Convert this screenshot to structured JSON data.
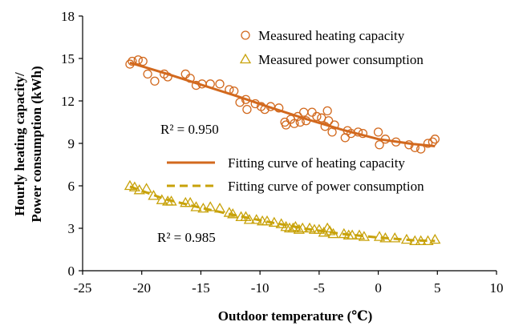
{
  "chart_data": {
    "type": "scatter",
    "xlabel": "Outdoor temperature (℃)",
    "ylabel_lines": [
      "Hourly heating capacity/",
      "Power consumption (kWh)"
    ],
    "xlim": [
      -25,
      10
    ],
    "ylim": [
      0,
      18
    ],
    "xticks": [
      "-25",
      "-20",
      "-15",
      "-10",
      "-5",
      "0",
      "5",
      "10"
    ],
    "yticks": [
      "0",
      "3",
      "6",
      "9",
      "12",
      "15",
      "18"
    ],
    "legend": {
      "heating_points": "Measured heating capacity",
      "power_points": "Measured power consumption",
      "heating_fit": "Fitting curve of heating capacity",
      "power_fit": "Fitting curve of power consumption"
    },
    "annotations": {
      "r2_heating": "R² = 0.950",
      "r2_power": "R² = 0.985"
    },
    "colors": {
      "heating": "#d2691e",
      "power": "#c8a20a"
    },
    "series": [
      {
        "name": "Measured heating capacity",
        "marker": "circle",
        "points": [
          [
            -21,
            14.6
          ],
          [
            -20.8,
            14.8
          ],
          [
            -20.3,
            14.9
          ],
          [
            -19.9,
            14.8
          ],
          [
            -19.5,
            13.9
          ],
          [
            -18.9,
            13.4
          ],
          [
            -18.1,
            13.9
          ],
          [
            -17.8,
            13.7
          ],
          [
            -16.3,
            13.9
          ],
          [
            -15.9,
            13.6
          ],
          [
            -15.4,
            13.1
          ],
          [
            -14.9,
            13.2
          ],
          [
            -14.2,
            13.2
          ],
          [
            -13.4,
            13.2
          ],
          [
            -12.6,
            12.8
          ],
          [
            -12.2,
            12.7
          ],
          [
            -11.7,
            11.9
          ],
          [
            -11.2,
            12.1
          ],
          [
            -11.1,
            11.4
          ],
          [
            -10.4,
            11.8
          ],
          [
            -9.9,
            11.6
          ],
          [
            -9.6,
            11.4
          ],
          [
            -9.1,
            11.6
          ],
          [
            -8.4,
            11.5
          ],
          [
            -7.9,
            10.5
          ],
          [
            -7.8,
            10.3
          ],
          [
            -7.4,
            10.7
          ],
          [
            -7.1,
            10.4
          ],
          [
            -6.8,
            10.9
          ],
          [
            -6.6,
            10.5
          ],
          [
            -6.3,
            11.2
          ],
          [
            -6.1,
            10.6
          ],
          [
            -5.6,
            11.2
          ],
          [
            -5.2,
            10.9
          ],
          [
            -4.8,
            10.8
          ],
          [
            -4.5,
            10.2
          ],
          [
            -4.3,
            11.3
          ],
          [
            -4.2,
            10.6
          ],
          [
            -3.9,
            9.8
          ],
          [
            -3.7,
            10.3
          ],
          [
            -2.8,
            9.4
          ],
          [
            -2.6,
            9.9
          ],
          [
            -2.3,
            9.7
          ],
          [
            -1.7,
            9.8
          ],
          [
            -1.3,
            9.7
          ],
          [
            0,
            9.8
          ],
          [
            0.1,
            8.9
          ],
          [
            0.6,
            9.3
          ],
          [
            1.5,
            9.1
          ],
          [
            2.6,
            8.9
          ],
          [
            3.1,
            8.7
          ],
          [
            3.6,
            8.6
          ],
          [
            4.2,
            9.0
          ],
          [
            4.6,
            9.1
          ],
          [
            4.8,
            9.3
          ]
        ]
      },
      {
        "name": "Measured power consumption",
        "marker": "triangle",
        "points": [
          [
            -21,
            6.0
          ],
          [
            -20.6,
            5.9
          ],
          [
            -20.2,
            5.7
          ],
          [
            -19.6,
            5.8
          ],
          [
            -19,
            5.3
          ],
          [
            -18.3,
            5.0
          ],
          [
            -17.8,
            4.9
          ],
          [
            -17.5,
            4.9
          ],
          [
            -16.3,
            4.8
          ],
          [
            -15.9,
            4.8
          ],
          [
            -15.4,
            4.5
          ],
          [
            -14.8,
            4.4
          ],
          [
            -14.2,
            4.5
          ],
          [
            -13.4,
            4.4
          ],
          [
            -12.6,
            4.1
          ],
          [
            -12.3,
            4.0
          ],
          [
            -11.6,
            3.8
          ],
          [
            -11.2,
            3.8
          ],
          [
            -10.9,
            3.6
          ],
          [
            -10.3,
            3.6
          ],
          [
            -9.8,
            3.5
          ],
          [
            -9.4,
            3.5
          ],
          [
            -8.8,
            3.4
          ],
          [
            -8.2,
            3.3
          ],
          [
            -7.8,
            3.1
          ],
          [
            -7.5,
            3.0
          ],
          [
            -7.2,
            3.0
          ],
          [
            -7.0,
            3.1
          ],
          [
            -6.7,
            2.9
          ],
          [
            -6.4,
            3.0
          ],
          [
            -5.8,
            3.0
          ],
          [
            -5.4,
            2.9
          ],
          [
            -5.0,
            2.9
          ],
          [
            -4.6,
            2.7
          ],
          [
            -4.3,
            3.0
          ],
          [
            -4.1,
            2.8
          ],
          [
            -3.8,
            2.6
          ],
          [
            -2.9,
            2.6
          ],
          [
            -2.5,
            2.5
          ],
          [
            -2.2,
            2.5
          ],
          [
            -1.6,
            2.5
          ],
          [
            -1.2,
            2.4
          ],
          [
            0.1,
            2.4
          ],
          [
            0.6,
            2.3
          ],
          [
            1.4,
            2.3
          ],
          [
            2.4,
            2.2
          ],
          [
            3.1,
            2.1
          ],
          [
            3.6,
            2.1
          ],
          [
            4.2,
            2.1
          ],
          [
            4.8,
            2.2
          ]
        ]
      },
      {
        "name": "Fitting curve of heating capacity",
        "line_style": "solid",
        "points": [
          [
            -21,
            14.7
          ],
          [
            -18,
            13.95
          ],
          [
            -15,
            13.15
          ],
          [
            -12,
            12.35
          ],
          [
            -9,
            11.5
          ],
          [
            -6,
            10.7
          ],
          [
            -3,
            9.95
          ],
          [
            0,
            9.3
          ],
          [
            3,
            8.95
          ],
          [
            4.8,
            8.8
          ]
        ]
      },
      {
        "name": "Fitting curve of power consumption",
        "line_style": "dashed",
        "points": [
          [
            -21,
            5.95
          ],
          [
            -18,
            5.05
          ],
          [
            -15,
            4.45
          ],
          [
            -12,
            3.9
          ],
          [
            -9,
            3.4
          ],
          [
            -6,
            2.95
          ],
          [
            -3,
            2.6
          ],
          [
            0,
            2.35
          ],
          [
            3,
            2.15
          ],
          [
            4.8,
            2.1
          ]
        ]
      }
    ]
  }
}
